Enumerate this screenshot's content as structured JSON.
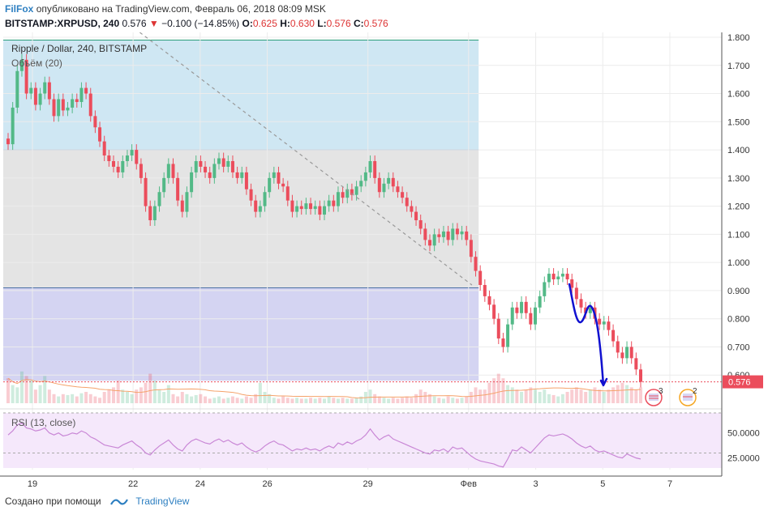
{
  "header": {
    "author": "FilFox",
    "published_text": "опубликовано на TradingView.com, Февраль 06, 2018 08:09 MSK",
    "symbol": "BITSTAMP:XRPUSD, 240",
    "last": "0.576",
    "change": "−0.100 (−14.85%)",
    "o_label": "O:",
    "o": "0.625",
    "h_label": "H:",
    "h": "0.630",
    "l_label": "L:",
    "l": "0.576",
    "c_label": "C:",
    "c": "0.576"
  },
  "legend": {
    "title": "Ripple / Dollar, 240, BITSTAMP",
    "volume": "Объём (20)",
    "rsi": "RSI (13, close)"
  },
  "footer": {
    "created_with": "Создано при помощи",
    "brand": "TradingView"
  },
  "colors": {
    "up": "#53b987",
    "down": "#eb4d5c",
    "zone_top": "#cfe7f3",
    "zone_mid": "#e4e4e4",
    "zone_bottom": "#d4d4f2",
    "rsi_line": "#c987d6",
    "rsi_bg": "#f5e8fb",
    "price_tag": "#eb4d5c",
    "drawing": "#1010d0"
  },
  "badges": [
    "3",
    "2"
  ],
  "chart_data": [
    {
      "type": "candlestick",
      "ylim": [
        0.5,
        1.8
      ],
      "y_ticks": [
        1.8,
        1.7,
        1.6,
        1.5,
        1.4,
        1.3,
        1.2,
        1.1,
        1.0,
        0.9,
        0.8,
        0.7,
        0.6
      ],
      "y_tick_labels": [
        "1.800",
        "1.700",
        "1.600",
        "1.500",
        "1.400",
        "1.300",
        "1.200",
        "1.100",
        "1.000",
        "0.900",
        "0.800",
        "0.700",
        "0.600"
      ],
      "x_ticks": [
        {
          "label": "19",
          "day": 0
        },
        {
          "label": "22",
          "day": 3
        },
        {
          "label": "24",
          "day": 5
        },
        {
          "label": "26",
          "day": 7
        },
        {
          "label": "29",
          "day": 10
        },
        {
          "label": "Фев",
          "day": 13
        },
        {
          "label": "3",
          "day": 15
        },
        {
          "label": "5",
          "day": 17
        },
        {
          "label": "7",
          "day": 19
        }
      ],
      "day_range": [
        0,
        20.6
      ],
      "last_price": 0.576,
      "last_price_label": "0.576",
      "close": [
        1.42,
        1.55,
        1.68,
        1.72,
        1.6,
        1.62,
        1.56,
        1.6,
        1.64,
        1.58,
        1.52,
        1.58,
        1.54,
        1.55,
        1.58,
        1.57,
        1.62,
        1.6,
        1.52,
        1.48,
        1.43,
        1.38,
        1.36,
        1.34,
        1.32,
        1.36,
        1.38,
        1.4,
        1.35,
        1.3,
        1.2,
        1.15,
        1.2,
        1.25,
        1.3,
        1.35,
        1.3,
        1.22,
        1.18,
        1.25,
        1.32,
        1.36,
        1.34,
        1.32,
        1.3,
        1.35,
        1.37,
        1.34,
        1.36,
        1.32,
        1.3,
        1.32,
        1.26,
        1.22,
        1.18,
        1.2,
        1.25,
        1.3,
        1.32,
        1.28,
        1.27,
        1.22,
        1.18,
        1.2,
        1.19,
        1.21,
        1.19,
        1.2,
        1.17,
        1.2,
        1.22,
        1.2,
        1.25,
        1.23,
        1.26,
        1.24,
        1.27,
        1.29,
        1.32,
        1.36,
        1.3,
        1.25,
        1.28,
        1.3,
        1.27,
        1.25,
        1.23,
        1.2,
        1.18,
        1.15,
        1.12,
        1.08,
        1.06,
        1.1,
        1.09,
        1.11,
        1.08,
        1.12,
        1.1,
        1.11,
        1.08,
        1.02,
        0.97,
        0.92,
        0.88,
        0.85,
        0.8,
        0.73,
        0.7,
        0.78,
        0.84,
        0.82,
        0.86,
        0.82,
        0.78,
        0.84,
        0.88,
        0.93,
        0.96,
        0.94,
        0.95,
        0.96,
        0.94,
        0.91,
        0.87,
        0.84,
        0.82,
        0.84,
        0.8,
        0.78,
        0.79,
        0.76,
        0.72,
        0.68,
        0.66,
        0.7,
        0.66,
        0.62,
        0.576
      ],
      "volume": [
        0.55,
        0.4,
        0.35,
        0.7,
        0.6,
        0.5,
        0.3,
        0.4,
        0.6,
        0.3,
        0.2,
        0.15,
        0.2,
        0.18,
        0.2,
        0.15,
        0.22,
        0.25,
        0.2,
        0.15,
        0.12,
        0.25,
        0.3,
        0.35,
        0.5,
        0.3,
        0.25,
        0.2,
        0.3,
        0.35,
        0.45,
        0.65,
        0.5,
        0.3,
        0.25,
        0.4,
        0.2,
        0.15,
        0.25,
        0.2,
        0.15,
        0.18,
        0.2,
        0.15,
        0.1,
        0.12,
        0.15,
        0.1,
        0.12,
        0.15,
        0.12,
        0.1,
        0.15,
        0.12,
        0.2,
        0.45,
        0.25,
        0.2,
        0.12,
        0.1,
        0.15,
        0.12,
        0.1,
        0.12,
        0.1,
        0.1,
        0.12,
        0.1,
        0.12,
        0.1,
        0.15,
        0.12,
        0.1,
        0.12,
        0.1,
        0.1,
        0.12,
        0.15,
        0.25,
        0.3,
        0.2,
        0.15,
        0.12,
        0.1,
        0.12,
        0.1,
        0.12,
        0.15,
        0.12,
        0.2,
        0.3,
        0.25,
        0.2,
        0.15,
        0.12,
        0.1,
        0.15,
        0.12,
        0.1,
        0.12,
        0.15,
        0.25,
        0.35,
        0.3,
        0.3,
        0.45,
        0.55,
        0.65,
        0.55,
        0.4,
        0.35,
        0.3,
        0.25,
        0.3,
        0.35,
        0.3,
        0.25,
        0.3,
        0.2,
        0.18,
        0.15,
        0.2,
        0.25,
        0.3,
        0.35,
        0.3,
        0.25,
        0.3,
        0.35,
        0.3,
        0.25,
        0.3,
        0.35,
        0.4,
        0.45,
        0.4,
        0.35,
        0.3,
        0.35
      ]
    },
    {
      "type": "line",
      "series": [
        {
          "name": "RSI (13, close)"
        }
      ],
      "ylim": [
        15,
        70
      ],
      "y_ticks": [
        50,
        25
      ],
      "y_tick_labels": [
        "50.0000",
        "25.0000"
      ],
      "bands": [
        70,
        30
      ],
      "values": [
        48,
        52,
        58,
        60,
        55,
        54,
        52,
        53,
        55,
        50,
        48,
        50,
        47,
        48,
        50,
        49,
        52,
        50,
        46,
        44,
        41,
        38,
        37,
        36,
        35,
        38,
        40,
        42,
        38,
        35,
        30,
        28,
        33,
        37,
        40,
        43,
        38,
        34,
        32,
        38,
        42,
        44,
        42,
        40,
        39,
        42,
        44,
        41,
        43,
        40,
        38,
        40,
        36,
        33,
        31,
        33,
        37,
        40,
        42,
        39,
        38,
        35,
        32,
        34,
        33,
        35,
        33,
        34,
        32,
        35,
        37,
        35,
        40,
        38,
        41,
        39,
        42,
        44,
        48,
        54,
        48,
        43,
        46,
        48,
        44,
        42,
        40,
        38,
        36,
        34,
        32,
        30,
        29,
        33,
        32,
        34,
        31,
        36,
        34,
        35,
        31,
        27,
        24,
        22,
        21,
        20,
        19,
        17,
        16,
        24,
        33,
        32,
        36,
        33,
        30,
        35,
        40,
        45,
        48,
        47,
        48,
        49,
        47,
        44,
        40,
        37,
        35,
        37,
        33,
        31,
        32,
        30,
        28,
        26,
        25,
        29,
        27,
        25,
        24
      ]
    }
  ]
}
